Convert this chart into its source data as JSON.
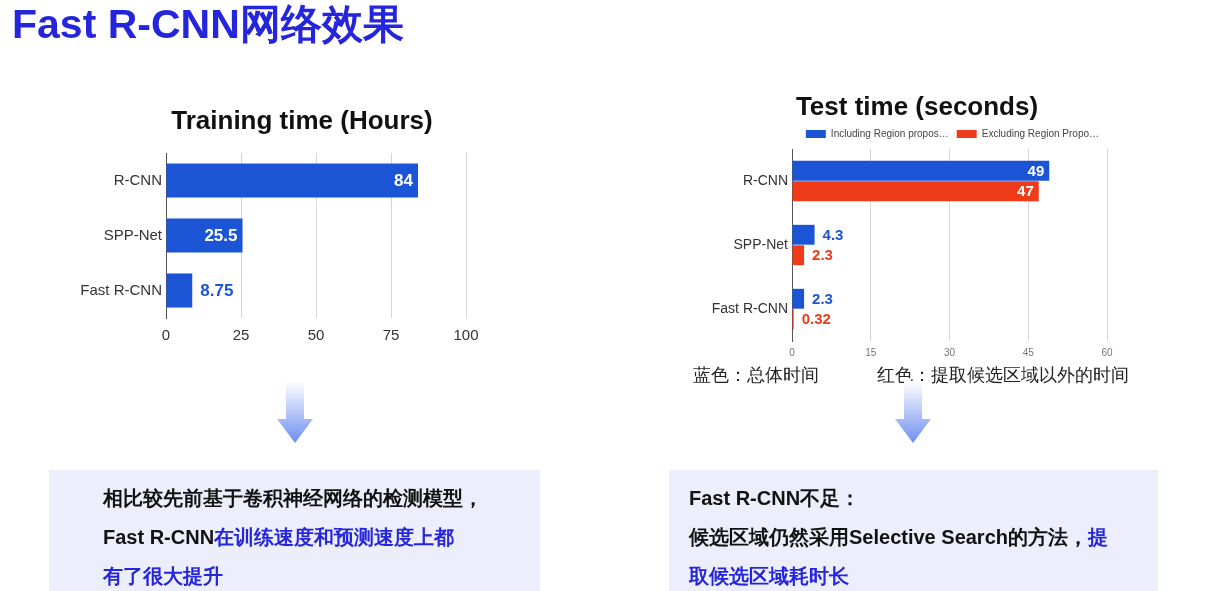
{
  "chart_data": [
    {
      "type": "other",
      "title": "Fast R-CNN网络效果"
    },
    {
      "type": "bar",
      "title": "Training time (Hours)",
      "orientation": "horizontal",
      "categories": [
        "R-CNN",
        "SPP-Net",
        "Fast R-CNN"
      ],
      "values": [
        84,
        25.5,
        8.75
      ],
      "color": "#1b55d6",
      "xlim": [
        0,
        100
      ],
      "xticks": [
        0,
        25,
        50,
        75,
        100
      ],
      "grid": "x",
      "data_labels": true
    },
    {
      "type": "bar",
      "title": "Test time (seconds)",
      "orientation": "horizontal",
      "categories": [
        "R-CNN",
        "SPP-Net",
        "Fast R-CNN"
      ],
      "series": [
        {
          "name": "Including Region propos…",
          "color": "#1b55d6",
          "values": [
            49,
            4.3,
            2.3
          ]
        },
        {
          "name": "Excluding Region Propo…",
          "color": "#ef3b19",
          "values": [
            47,
            2.3,
            0.32
          ]
        }
      ],
      "xlim": [
        0,
        60
      ],
      "xticks": [
        0,
        15,
        30,
        45,
        60
      ],
      "grid": "x",
      "legend": "top",
      "data_labels": true,
      "annotations": [
        "蓝色：总体时间",
        "红色：提取候选区域以外的时间"
      ]
    },
    {
      "type": "other",
      "annotations": [
        "相比较先前基于卷积神经网络的检测模型，",
        "Fast R-CNN",
        "在训练速度和预测速度上都",
        "有了很大提升"
      ]
    },
    {
      "type": "other",
      "title": "Fast R-CNN不足：",
      "annotations": [
        "候选区域仍然采用Selective Search的方法，",
        "提",
        "取候选区域耗时长"
      ]
    }
  ]
}
